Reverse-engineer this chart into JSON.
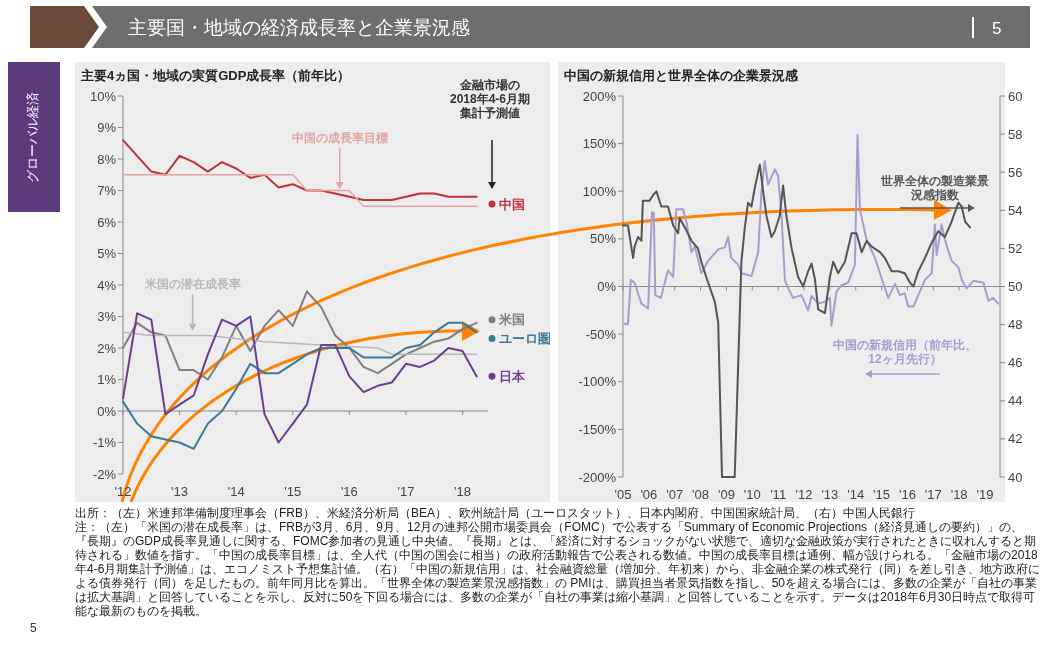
{
  "chart_data": [
    {
      "type": "other",
      "title": "主要国・地域の経済成長率と企業景況感",
      "annotations": [
        "グローバル経済",
        "5",
        "5",
        "出所：（左）米連邦準備制度理事会（FRB）、米経済分析局（BEA）、欧州統計局（ユーロスタット）、日本内閣府、中国国家統計局、（右）中国人民銀行",
        "注：（左）「米国の潜在成長率」は、FRBが3月、6月、9月、12月の連邦公開市場委員会（FOMC）で公表する「Summary of Economic Projections（経済見通しの要約）」の、『長期』のGDP成長率見通しに関する、FOMC参加者の見通し中央値。『長期』とは、「経済に対するショックがない状態で、適切な金融政策が実行されたときに収れんすると期待される」数値を指す。「中国の成長率目標」は、全人代（中国の国会に相当）の政府活動報告で公表される数値。中国の成長率目標は通例、幅が設けられる。「金融市場の2018年4-6月期集計予測値」は、エコノミスト予想集計値。（右）「中国の新規信用」は、社会融資総量（増加分、年初来）から、非金融企業の株式発行（同）を差し引き、地方政府による債券発行（同）を足したもの。前年同月比を算出。「世界全体の製造業景況感指数」の PMIは、購買担当者景気指数を指し、50を超える場合には、多数の企業が「自社の事業は拡大基調」と回答していることを示し、反対に50を下回る場合には、多数の企業が「自社の事業は縮小基調」と回答していることを示す。データは2018年6月30日時点で取得可能な最新のものを掲載。"
      ]
    },
    {
      "type": "line",
      "title": "主要4ヵ国・地域の実質GDP成長率（前年比）",
      "x": [
        2012,
        2012.25,
        2012.5,
        2012.75,
        2013,
        2013.25,
        2013.5,
        2013.75,
        2014,
        2014.25,
        2014.5,
        2014.75,
        2015,
        2015.25,
        2015.5,
        2015.75,
        2016,
        2016.25,
        2016.5,
        2016.75,
        2017,
        2017.25,
        2017.5,
        2017.75,
        2018,
        2018.25
      ],
      "series": [
        {
          "name": "中国",
          "color": "#c0323a",
          "values": [
            8.6,
            8.1,
            7.6,
            7.5,
            8.1,
            7.9,
            7.6,
            7.9,
            7.7,
            7.4,
            7.5,
            7.1,
            7.2,
            7.0,
            7.0,
            6.9,
            6.8,
            6.7,
            6.7,
            6.7,
            6.8,
            6.9,
            6.9,
            6.8,
            6.8,
            6.8
          ]
        },
        {
          "name": "中国の成長率目標",
          "color": "#e3a3a3",
          "x": [
            2012,
            2015,
            2015.25,
            2016,
            2016.25,
            2018.25
          ],
          "values": [
            7.5,
            7.5,
            7.0,
            7.0,
            6.5,
            6.5
          ]
        },
        {
          "name": "米国",
          "color": "#7f7f7f",
          "values": [
            2.0,
            2.8,
            2.5,
            2.4,
            1.3,
            1.3,
            1.0,
            1.7,
            2.7,
            1.9,
            2.7,
            3.2,
            2.7,
            3.8,
            3.3,
            2.4,
            2.0,
            1.4,
            1.2,
            1.5,
            1.8,
            2.0,
            2.2,
            2.3,
            2.6,
            2.8
          ]
        },
        {
          "name": "米国の潜在成長率",
          "color": "#b8b8b8",
          "x": [
            2012,
            2012.5,
            2013.5,
            2014.5,
            2015.5,
            2016.5,
            2016.75,
            2018.25
          ],
          "values": [
            2.5,
            2.4,
            2.4,
            2.2,
            2.1,
            2.0,
            1.8,
            1.8
          ]
        },
        {
          "name": "ユーロ圏",
          "color": "#3c7a98",
          "values": [
            0.3,
            -0.4,
            -0.8,
            -0.9,
            -1.0,
            -1.2,
            -0.4,
            0.0,
            0.7,
            1.5,
            1.2,
            1.2,
            1.5,
            1.8,
            2.0,
            2.0,
            2.0,
            1.7,
            1.7,
            1.7,
            2.0,
            2.1,
            2.5,
            2.8,
            2.8,
            2.5
          ]
        },
        {
          "name": "日本",
          "color": "#6b3f8f",
          "values": [
            0.4,
            3.1,
            2.9,
            -0.1,
            0.2,
            0.5,
            1.8,
            2.9,
            2.7,
            3.0,
            -0.1,
            -1.0,
            -0.4,
            0.2,
            2.1,
            2.1,
            1.1,
            0.6,
            0.8,
            0.9,
            1.5,
            1.4,
            1.6,
            2.0,
            1.9,
            1.1
          ]
        }
      ],
      "annotations": [
        "金融市場の2018年4-6月期集計予測値"
      ],
      "legend": "right",
      "xlim": [
        2012,
        2018.45
      ],
      "xticks": [
        {
          "value": 2012,
          "label": "'12"
        },
        {
          "value": 2013,
          "label": "'13"
        },
        {
          "value": 2014,
          "label": "'14"
        },
        {
          "value": 2015,
          "label": "'15"
        },
        {
          "value": 2016,
          "label": "'16"
        },
        {
          "value": 2017,
          "label": "'17"
        },
        {
          "value": 2018,
          "label": "'18"
        }
      ],
      "ylim": [
        -2,
        10
      ],
      "yticks": [
        {
          "value": -2,
          "label": "-2%"
        },
        {
          "value": -1,
          "label": "-1%"
        },
        {
          "value": 0,
          "label": "0%"
        },
        {
          "value": 1,
          "label": "1%"
        },
        {
          "value": 2,
          "label": "2%"
        },
        {
          "value": 3,
          "label": "3%"
        },
        {
          "value": 4,
          "label": "4%"
        },
        {
          "value": 5,
          "label": "5%"
        },
        {
          "value": 6,
          "label": "6%"
        },
        {
          "value": 7,
          "label": "7%"
        },
        {
          "value": 8,
          "label": "8%"
        },
        {
          "value": 9,
          "label": "9%"
        },
        {
          "value": 10,
          "label": "10%"
        }
      ]
    },
    {
      "type": "line",
      "title": "中国の新規信用と世界全体の企業景況感",
      "series": [
        {
          "name": "中国の新規信用（前年比、12ヶ月先行）",
          "color": "#a89ccf",
          "x": [
            2005.06,
            2005.19,
            2005.3,
            2005.45,
            2005.71,
            2005.97,
            2006.12,
            2006.19,
            2006.25,
            2006.46,
            2006.74,
            2006.94,
            2007.06,
            2007.32,
            2007.45,
            2007.65,
            2007.78,
            2008.03,
            2008.29,
            2008.68,
            2008.94,
            2009.06,
            2009.19,
            2009.45,
            2009.58,
            2009.97,
            2010.23,
            2010.35,
            2010.48,
            2010.61,
            2010.87,
            2011.0,
            2011.13,
            2011.26,
            2011.39,
            2011.58,
            2011.9,
            2012.16,
            2012.29,
            2012.55,
            2012.81,
            2013.0,
            2013.06,
            2013.26,
            2013.45,
            2013.71,
            2013.97,
            2014.07,
            2014.16,
            2014.29,
            2014.42,
            2014.74,
            2015.06,
            2015.26,
            2015.52,
            2015.71,
            2015.9,
            2016.03,
            2016.23,
            2016.42,
            2016.68,
            2016.94,
            2017.06,
            2017.13,
            2017.32,
            2017.45,
            2017.71,
            2017.97,
            2018.1,
            2018.29,
            2018.55,
            2018.94,
            2019.13,
            2019.32,
            2019.52
          ],
          "values": [
            -39,
            -40,
            7,
            4,
            -18,
            -23,
            78,
            77,
            -9,
            -12,
            17,
            10,
            81,
            81,
            68,
            36,
            42,
            14,
            27,
            39,
            41,
            52,
            30,
            23,
            14,
            11,
            36,
            97,
            132,
            107,
            123,
            116,
            75,
            7,
            -2,
            -12,
            -9,
            -25,
            -10,
            -18,
            -16,
            -12,
            -41,
            -5,
            1,
            4,
            23,
            159,
            81,
            65,
            49,
            30,
            4,
            -12,
            3,
            -9,
            -7,
            -21,
            -21,
            -9,
            7,
            14,
            65,
            33,
            65,
            49,
            27,
            20,
            7,
            -2,
            6,
            4,
            -15,
            -12,
            -18
          ]
        },
        {
          "name": "世界全体の製造業景況感指数",
          "color": "#555555",
          "axis": "y2",
          "x": [
            2005.0,
            2005.19,
            2005.39,
            2005.45,
            2005.58,
            2005.71,
            2005.77,
            2006.03,
            2006.16,
            2006.29,
            2006.48,
            2006.74,
            2006.94,
            2007.13,
            2007.19,
            2007.39,
            2007.65,
            2007.9,
            2008.03,
            2008.29,
            2008.55,
            2008.68,
            2008.83,
            2009.32,
            2009.58,
            2009.71,
            2009.84,
            2009.97,
            2010.1,
            2010.29,
            2010.42,
            2010.55,
            2010.74,
            2010.87,
            2011.06,
            2011.19,
            2011.32,
            2011.52,
            2011.77,
            2011.97,
            2012.16,
            2012.29,
            2012.42,
            2012.55,
            2012.81,
            2013.0,
            2013.13,
            2013.32,
            2013.58,
            2013.84,
            2014.03,
            2014.23,
            2014.42,
            2014.61,
            2014.94,
            2015.13,
            2015.39,
            2015.65,
            2015.9,
            2016.1,
            2016.23,
            2016.42,
            2016.68,
            2016.94,
            2017.19,
            2017.45,
            2017.71,
            2017.84,
            2017.97,
            2018.1,
            2018.23,
            2018.42
          ],
          "values": [
            53.2,
            53.2,
            51.5,
            52.1,
            52.6,
            52.4,
            54.5,
            54.5,
            54.8,
            55.0,
            54.2,
            54.2,
            53.2,
            52.8,
            53.6,
            53.1,
            52.4,
            52.0,
            51.3,
            50.2,
            49.2,
            48.1,
            40,
            40,
            51.3,
            53.1,
            54.4,
            54.2,
            55.2,
            56.4,
            55.0,
            53.7,
            52.6,
            52.9,
            53.7,
            55.3,
            53.7,
            52.0,
            50.5,
            50.0,
            50.8,
            51.2,
            50.4,
            48.8,
            48.6,
            50.5,
            51.3,
            50.7,
            51.3,
            52.8,
            52.8,
            51.8,
            52.4,
            52.1,
            51.8,
            51.5,
            50.8,
            50.8,
            50.7,
            50.2,
            50.0,
            50.8,
            51.5,
            52.3,
            52.9,
            52.6,
            53.4,
            53.9,
            54.4,
            54.2,
            53.4,
            53.1
          ]
        }
      ],
      "xlim": [
        2005,
        2019.58
      ],
      "xticks": [
        {
          "value": 2005,
          "label": "'05"
        },
        {
          "value": 2006,
          "label": "'06"
        },
        {
          "value": 2007,
          "label": "'07"
        },
        {
          "value": 2008,
          "label": "'08"
        },
        {
          "value": 2009,
          "label": "'09"
        },
        {
          "value": 2010,
          "label": "'10"
        },
        {
          "value": 2011,
          "label": "'11"
        },
        {
          "value": 2012,
          "label": "'12"
        },
        {
          "value": 2013,
          "label": "'13"
        },
        {
          "value": 2014,
          "label": "'14"
        },
        {
          "value": 2015,
          "label": "'15"
        },
        {
          "value": 2016,
          "label": "'16"
        },
        {
          "value": 2017,
          "label": "'17"
        },
        {
          "value": 2018,
          "label": "'18"
        },
        {
          "value": 2019,
          "label": "'19"
        }
      ],
      "ylim": [
        -200,
        200
      ],
      "yticks": [
        {
          "value": -200,
          "label": "-200%"
        },
        {
          "value": -150,
          "label": "-150%"
        },
        {
          "value": -100,
          "label": "-100%"
        },
        {
          "value": -50,
          "label": "-50%"
        },
        {
          "value": 0,
          "label": "0%"
        },
        {
          "value": 50,
          "label": "50%"
        },
        {
          "value": 100,
          "label": "100%"
        },
        {
          "value": 150,
          "label": "150%"
        },
        {
          "value": 200,
          "label": "200%"
        }
      ],
      "y2lim": [
        40,
        60
      ],
      "y2ticks": [
        40,
        42,
        44,
        46,
        48,
        50,
        52,
        54,
        56,
        58,
        60
      ]
    }
  ]
}
